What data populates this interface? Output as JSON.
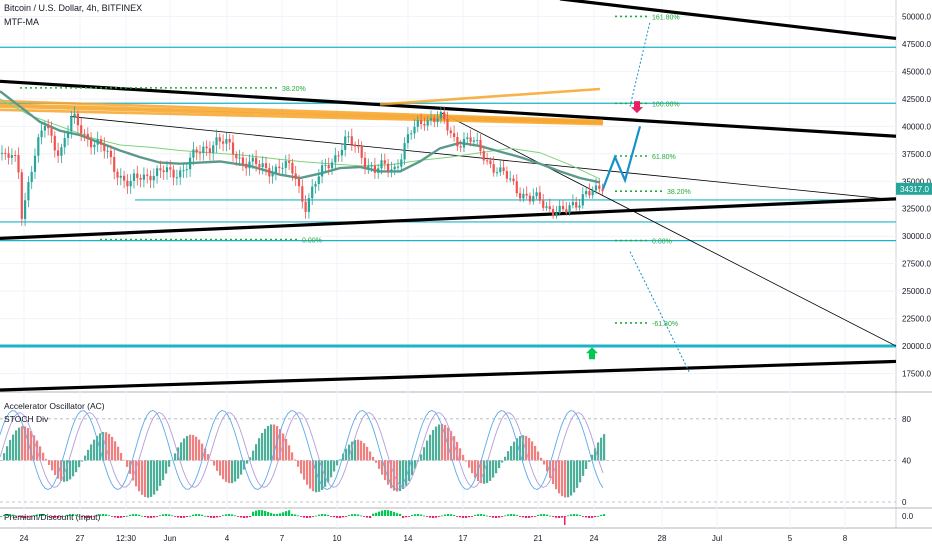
{
  "header": {
    "symbol": "Bitcoin / U.S. Dollar",
    "sep1": ", ",
    "timeframe": "4h",
    "sep2": ", ",
    "exchange": "BITFINEX"
  },
  "indicators": {
    "ma_label": "MTF-MA",
    "ac_label": "Accelerator Oscillator (AC)",
    "stoch_label": "STOCH Div",
    "pd_label": "Premium/Discount (Input)"
  },
  "colors": {
    "up": "#26a69a",
    "down": "#ef5350",
    "ma_main": "#5b9a8b",
    "ma_light": "#7cd37a",
    "orange": "#f7a52b",
    "cyan": "#1cb3c9",
    "fib": "#22ab3a",
    "projection": "#1592c9",
    "trend": "#000000",
    "osc_up": "#4caf9a",
    "osc_down": "#f08080",
    "stoch_a": "#5da9e9",
    "stoch_b": "#b39ddb"
  },
  "chart_data": {
    "type": "candlestick",
    "title": "Bitcoin / U.S. Dollar, 4h, BITFINEX",
    "ylim": [
      16000,
      51500
    ],
    "y_ticks": [
      17500,
      20000,
      22500,
      25000,
      27500,
      30000,
      32500,
      35000,
      37500,
      40000,
      42500,
      45000,
      47500,
      50000
    ],
    "y_tick_labels": [
      "17500.0",
      "20000.0",
      "22500.0",
      "25000.0",
      "27500.0",
      "30000.0",
      "32500.0",
      "35000.0",
      "37500.0",
      "40000.0",
      "42500.0",
      "45000.0",
      "47500.0",
      "50000.0"
    ],
    "last_price": 34317,
    "last_price_label": "34317.0",
    "x_ticks": [
      "24",
      "27",
      "12:30",
      "Jun",
      "4",
      "7",
      "10",
      "14",
      "17",
      "21",
      "24",
      "28",
      "Jul",
      "5",
      "8"
    ],
    "x_tick_positions": [
      24,
      80,
      126,
      170,
      227,
      282,
      337,
      408,
      463,
      538,
      594,
      662,
      717,
      790,
      845
    ],
    "close_path": [
      [
        0,
        37500
      ],
      [
        18,
        36500
      ],
      [
        22,
        32000
      ],
      [
        30,
        36000
      ],
      [
        45,
        40000
      ],
      [
        60,
        37800
      ],
      [
        72,
        40500
      ],
      [
        90,
        39000
      ],
      [
        110,
        37000
      ],
      [
        130,
        34500
      ],
      [
        150,
        36000
      ],
      [
        170,
        35500
      ],
      [
        185,
        36500
      ],
      [
        200,
        37500
      ],
      [
        215,
        39000
      ],
      [
        230,
        37800
      ],
      [
        245,
        37000
      ],
      [
        260,
        36000
      ],
      [
        280,
        36500
      ],
      [
        295,
        35500
      ],
      [
        305,
        33000
      ],
      [
        315,
        34500
      ],
      [
        330,
        37000
      ],
      [
        345,
        38500
      ],
      [
        360,
        37800
      ],
      [
        375,
        35800
      ],
      [
        395,
        36500
      ],
      [
        410,
        39000
      ],
      [
        425,
        41000
      ],
      [
        440,
        40500
      ],
      [
        455,
        39000
      ],
      [
        470,
        38500
      ],
      [
        485,
        37500
      ],
      [
        500,
        35500
      ],
      [
        515,
        34800
      ],
      [
        530,
        33200
      ],
      [
        545,
        33000
      ],
      [
        555,
        32500
      ],
      [
        565,
        31800
      ],
      [
        575,
        33000
      ],
      [
        585,
        34300
      ],
      [
        595,
        33600
      ],
      [
        603,
        34317
      ]
    ],
    "ma_main": [
      [
        0,
        43200
      ],
      [
        20,
        41800
      ],
      [
        40,
        40400
      ],
      [
        60,
        39600
      ],
      [
        80,
        39200
      ],
      [
        100,
        38500
      ],
      [
        120,
        37800
      ],
      [
        140,
        37200
      ],
      [
        160,
        36700
      ],
      [
        180,
        36600
      ],
      [
        200,
        36700
      ],
      [
        220,
        36800
      ],
      [
        250,
        36400
      ],
      [
        280,
        35600
      ],
      [
        300,
        35300
      ],
      [
        320,
        35700
      ],
      [
        340,
        36200
      ],
      [
        360,
        36300
      ],
      [
        380,
        35900
      ],
      [
        400,
        35900
      ],
      [
        420,
        36800
      ],
      [
        440,
        38000
      ],
      [
        460,
        38500
      ],
      [
        480,
        38200
      ],
      [
        500,
        37700
      ],
      [
        520,
        37200
      ],
      [
        540,
        36600
      ],
      [
        560,
        35900
      ],
      [
        580,
        35300
      ],
      [
        600,
        34900
      ]
    ],
    "ma_light": [
      [
        0,
        42500
      ],
      [
        30,
        41000
      ],
      [
        60,
        40000
      ],
      [
        90,
        39000
      ],
      [
        120,
        38300
      ],
      [
        150,
        38100
      ],
      [
        180,
        37800
      ],
      [
        210,
        37600
      ],
      [
        240,
        37400
      ],
      [
        270,
        37100
      ],
      [
        300,
        36800
      ],
      [
        330,
        36600
      ],
      [
        360,
        36400
      ],
      [
        390,
        36500
      ],
      [
        420,
        36900
      ],
      [
        450,
        37200
      ],
      [
        480,
        37600
      ],
      [
        510,
        38000
      ],
      [
        540,
        37600
      ],
      [
        570,
        36500
      ],
      [
        600,
        35200
      ]
    ],
    "orange_lines": [
      {
        "from": [
          0,
          42300
        ],
        "to": [
          603,
          40500
        ]
      },
      {
        "from": [
          0,
          42000
        ],
        "to": [
          603,
          40400
        ]
      },
      {
        "from": [
          0,
          41800
        ],
        "to": [
          603,
          40300
        ]
      },
      {
        "from": [
          0,
          41500
        ],
        "to": [
          603,
          40200
        ]
      },
      {
        "from": [
          380,
          42000
        ],
        "to": [
          600,
          43400
        ]
      }
    ],
    "horizontal_levels": [
      47200,
      42100,
      33300,
      31300,
      29600,
      20000
    ],
    "trend_lines": [
      {
        "from": [
          0,
          44100
        ],
        "to": [
          896,
          39100
        ],
        "weight": "heavy"
      },
      {
        "from": [
          560,
          51600
        ],
        "to": [
          896,
          48000
        ],
        "weight": "heavy"
      },
      {
        "from": [
          0,
          29800
        ],
        "to": [
          896,
          33400
        ],
        "weight": "heavy"
      },
      {
        "from": [
          0,
          16000
        ],
        "to": [
          896,
          18600
        ],
        "weight": "heavy"
      },
      {
        "from": [
          70,
          40900
        ],
        "to": [
          896,
          33300
        ],
        "weight": "thin"
      },
      {
        "from": [
          440,
          41300
        ],
        "to": [
          896,
          20000
        ],
        "weight": "thin"
      }
    ],
    "fib_levels": [
      {
        "label": "161.80%",
        "value": 50000,
        "x_range": [
          615,
          650
        ]
      },
      {
        "label": "100.00%",
        "value": 42100,
        "x_range": [
          615,
          650
        ]
      },
      {
        "label": "61.80%",
        "value": 37300,
        "x_range": [
          615,
          650
        ]
      },
      {
        "label": "38.20%",
        "value": 34100,
        "x_range": [
          615,
          665
        ]
      },
      {
        "label": "0.00%",
        "value": 29600,
        "x_range": [
          615,
          650
        ]
      },
      {
        "label": "-61.80%",
        "value": 22100,
        "x_range": [
          615,
          650
        ]
      },
      {
        "label": "38.20%",
        "value": 43500,
        "x_range": [
          20,
          280
        ]
      },
      {
        "label": "0.00%",
        "value": 29700,
        "x_range": [
          100,
          300
        ]
      }
    ],
    "projection": [
      [
        603,
        34317
      ],
      [
        615,
        37200
      ],
      [
        625,
        35100
      ],
      [
        640,
        40000
      ]
    ],
    "projection_targets": [
      {
        "from": [
          630,
          41800
        ],
        "to": [
          650,
          49500
        ]
      },
      {
        "from": [
          630,
          28600
        ],
        "to": [
          690,
          17500
        ]
      }
    ],
    "signals": [
      {
        "type": "sell",
        "value": 41200,
        "x": 637
      },
      {
        "type": "buy",
        "value": 18800,
        "x": 592
      }
    ],
    "oscillator_ticks": [
      0,
      40,
      80
    ],
    "premium_label": "0.0"
  }
}
